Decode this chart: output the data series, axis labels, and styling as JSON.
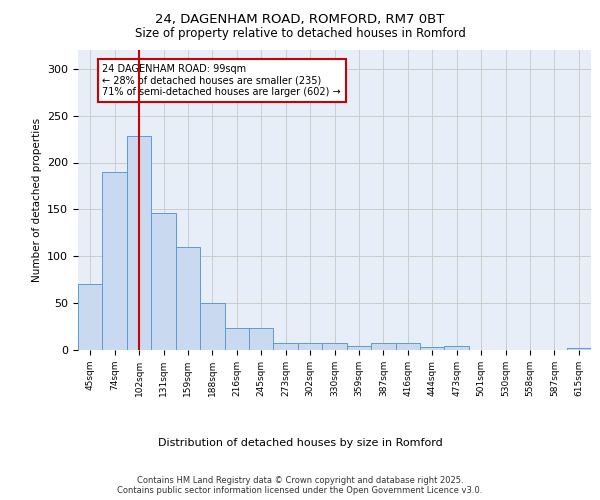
{
  "title1": "24, DAGENHAM ROAD, ROMFORD, RM7 0BT",
  "title2": "Size of property relative to detached houses in Romford",
  "xlabel": "Distribution of detached houses by size in Romford",
  "ylabel": "Number of detached properties",
  "categories": [
    "45sqm",
    "74sqm",
    "102sqm",
    "131sqm",
    "159sqm",
    "188sqm",
    "216sqm",
    "245sqm",
    "273sqm",
    "302sqm",
    "330sqm",
    "359sqm",
    "387sqm",
    "416sqm",
    "444sqm",
    "473sqm",
    "501sqm",
    "530sqm",
    "558sqm",
    "587sqm",
    "615sqm"
  ],
  "values": [
    70,
    190,
    228,
    146,
    110,
    50,
    23,
    23,
    8,
    8,
    8,
    4,
    8,
    8,
    3,
    4,
    0,
    0,
    0,
    0,
    2
  ],
  "bar_color": "#c9d9f0",
  "bar_edge_color": "#5b9bd5",
  "grid_color": "#cccccc",
  "background_color": "#e8eef8",
  "vline_x": 2,
  "vline_color": "#cc0000",
  "annotation_text": "24 DAGENHAM ROAD: 99sqm\n← 28% of detached houses are smaller (235)\n71% of semi-detached houses are larger (602) →",
  "annotation_box_color": "#ffffff",
  "annotation_box_edge_color": "#cc0000",
  "ylim": [
    0,
    320
  ],
  "yticks": [
    0,
    50,
    100,
    150,
    200,
    250,
    300
  ],
  "footer1": "Contains HM Land Registry data © Crown copyright and database right 2025.",
  "footer2": "Contains public sector information licensed under the Open Government Licence v3.0."
}
